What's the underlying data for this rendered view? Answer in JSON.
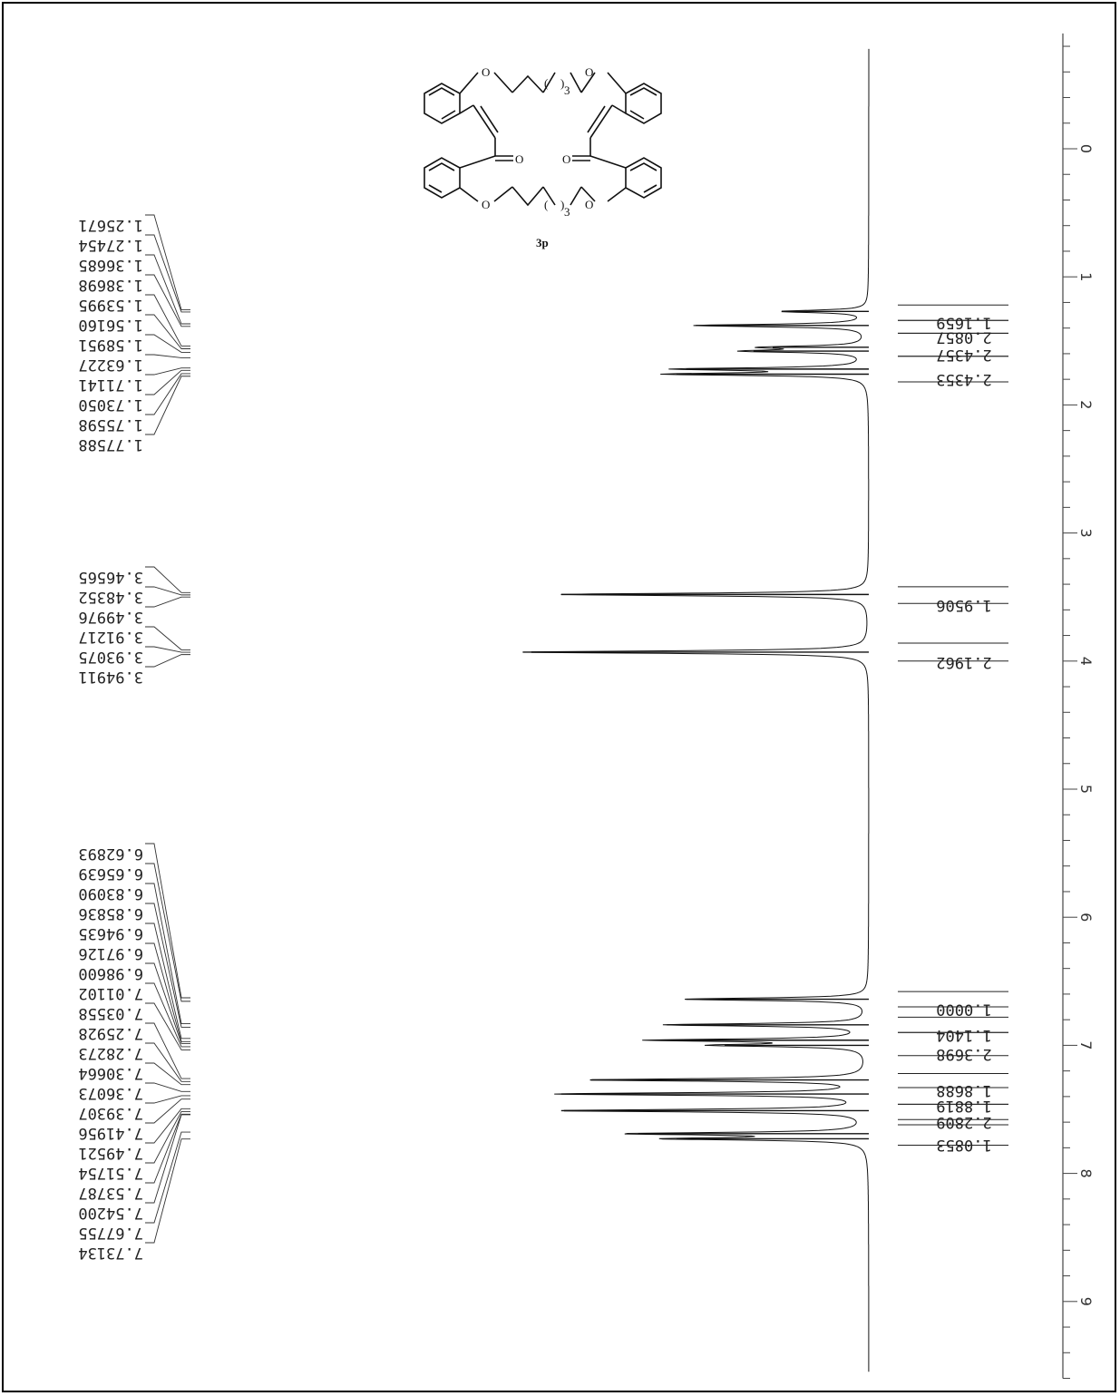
{
  "chart_data": {
    "type": "line",
    "title": "",
    "xlabel": "",
    "ylabel": "",
    "axis_range_ppm": [
      -0.9,
      9.6
    ],
    "axis_ticks": [
      "0",
      "1",
      "2",
      "3",
      "4",
      "5",
      "6",
      "7",
      "8",
      "9"
    ],
    "tick_values": [
      0,
      1,
      2,
      3,
      4,
      5,
      6,
      7,
      8,
      9
    ],
    "orientation": "rotated-90",
    "peak_groups": [
      {
        "ppm_values": [
          1.2567,
          1.2745,
          1.3669,
          1.387,
          1.54,
          1.5616,
          1.5895,
          1.6323,
          1.7114,
          1.7305,
          1.756,
          1.7759
        ],
        "labels": [
          "1.25671",
          "1.27454",
          "1.36685",
          "1.38698",
          "1.53995",
          "1.56160",
          "1.58951",
          "1.63227",
          "1.71141",
          "1.73050",
          "1.75598",
          "1.77588"
        ]
      },
      {
        "ppm_values": [
          3.4657,
          3.4835,
          3.4998,
          3.9122,
          3.9308,
          3.9491
        ],
        "labels": [
          "3.46565",
          "3.48352",
          "3.49976",
          "3.91217",
          "3.93075",
          "3.94911"
        ]
      },
      {
        "ppm_values": [
          6.6289,
          6.6564,
          6.8309,
          6.8584,
          6.9464,
          6.9713,
          6.986,
          7.011,
          7.0356,
          7.2593,
          7.2827,
          7.3066,
          7.3607,
          7.3931,
          7.4196,
          7.4952,
          7.5175,
          7.5379,
          7.542,
          7.6776,
          7.7313
        ],
        "labels": [
          "6.62893",
          "6.65639",
          "6.83090",
          "6.85836",
          "6.94635",
          "6.97126",
          "6.98600",
          "7.01102",
          "7.03558",
          "7.25928",
          "7.28273",
          "7.30664",
          "7.36073",
          "7.39307",
          "7.41956",
          "7.49521",
          "7.51754",
          "7.53787",
          "7.54200",
          "7.67755",
          "7.73134"
        ]
      }
    ],
    "integrals": [
      {
        "value": 1.1659,
        "label": "1.1659",
        "range_ppm": [
          1.22,
          1.34
        ]
      },
      {
        "value": 2.0857,
        "label": "2.0857",
        "range_ppm": [
          1.34,
          1.44
        ]
      },
      {
        "value": 2.4357,
        "label": "2.4357",
        "range_ppm": [
          1.44,
          1.62
        ]
      },
      {
        "value": 2.4353,
        "label": "2.4353",
        "range_ppm": [
          1.62,
          1.82
        ]
      },
      {
        "value": 1.9506,
        "label": "1.9506",
        "range_ppm": [
          3.42,
          3.55
        ]
      },
      {
        "value": 2.1962,
        "label": "2.1962",
        "range_ppm": [
          3.86,
          4.0
        ]
      },
      {
        "value": 1.0,
        "label": "1.0000",
        "range_ppm": [
          6.58,
          6.7
        ]
      },
      {
        "value": 1.1404,
        "label": "1.1404",
        "range_ppm": [
          6.78,
          6.9
        ]
      },
      {
        "value": 2.3698,
        "label": "2.3698",
        "range_ppm": [
          6.9,
          7.08
        ]
      },
      {
        "value": 1.8688,
        "label": "1.8688",
        "range_ppm": [
          7.22,
          7.33
        ]
      },
      {
        "value": 1.8819,
        "label": "1.8819",
        "range_ppm": [
          7.33,
          7.46
        ]
      },
      {
        "value": 2.2809,
        "label": "2.2809",
        "range_ppm": [
          7.46,
          7.58
        ]
      },
      {
        "value": 1.0853,
        "label": "1.0853",
        "range_ppm": [
          7.62,
          7.78
        ]
      }
    ],
    "peaks": [
      {
        "ppm": 1.27,
        "height": 0.09
      },
      {
        "ppm": 1.38,
        "height": 0.18
      },
      {
        "ppm": 1.55,
        "height": 0.1
      },
      {
        "ppm": 1.58,
        "height": 0.12
      },
      {
        "ppm": 1.72,
        "height": 0.19
      },
      {
        "ppm": 1.76,
        "height": 0.2
      },
      {
        "ppm": 3.48,
        "height": 0.32
      },
      {
        "ppm": 3.93,
        "height": 0.36
      },
      {
        "ppm": 6.64,
        "height": 0.19
      },
      {
        "ppm": 6.84,
        "height": 0.21
      },
      {
        "ppm": 6.96,
        "height": 0.22
      },
      {
        "ppm": 7.0,
        "height": 0.15
      },
      {
        "ppm": 7.27,
        "height": 0.29
      },
      {
        "ppm": 7.38,
        "height": 0.32
      },
      {
        "ppm": 7.51,
        "height": 0.32
      },
      {
        "ppm": 7.69,
        "height": 0.24
      },
      {
        "ppm": 7.73,
        "height": 0.2
      }
    ]
  },
  "structure": {
    "compound_label": "3p",
    "atom_labels": [
      "O",
      "O",
      "O",
      "O",
      "O",
      "O"
    ],
    "subscript": "3"
  }
}
